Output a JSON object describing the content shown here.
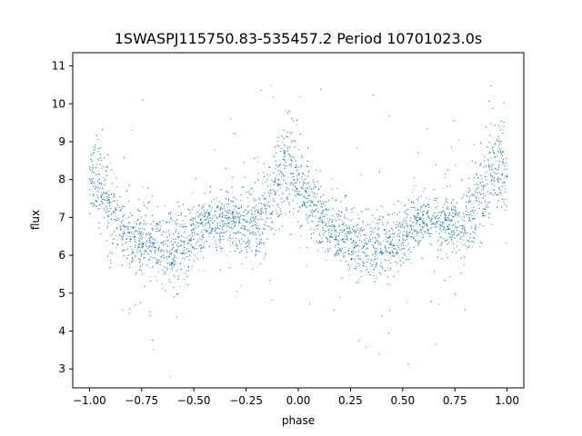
{
  "chart_data": {
    "type": "scatter",
    "title": "1SWASPJ115750.83-535457.2 Period 10701023.0s",
    "xlabel": "phase",
    "ylabel": "flux",
    "xlim": [
      -1.08,
      1.08
    ],
    "ylim": [
      2.5,
      11.35
    ],
    "xticks": [
      -1.0,
      -0.75,
      -0.5,
      -0.25,
      0.0,
      0.25,
      0.5,
      0.75,
      1.0
    ],
    "xtick_labels": [
      "−1.00",
      "−0.75",
      "−0.50",
      "−0.25",
      "0.00",
      "0.25",
      "0.50",
      "0.75",
      "1.00"
    ],
    "yticks": [
      3,
      4,
      5,
      6,
      7,
      8,
      9,
      10,
      11
    ],
    "ytick_labels": [
      "3",
      "4",
      "5",
      "6",
      "7",
      "8",
      "9",
      "10",
      "11"
    ],
    "grid": false,
    "point_color": "#1f77b4",
    "series": [
      {
        "phase": [
          -1.0,
          -0.95,
          -0.9,
          -0.85,
          -0.8,
          -0.75,
          -0.7,
          -0.65,
          -0.6,
          -0.55,
          -0.5,
          -0.45,
          -0.4,
          -0.35,
          -0.3,
          -0.25,
          -0.2,
          -0.15,
          -0.1,
          -0.05,
          0.0,
          0.05,
          0.1,
          0.15,
          0.2,
          0.25,
          0.3,
          0.35,
          0.4,
          0.45,
          0.5,
          0.55,
          0.6,
          0.65,
          0.7,
          0.75,
          0.8,
          0.85,
          0.9,
          0.95,
          1.0
        ],
        "flux_median": [
          8.0,
          7.9,
          7.1,
          6.7,
          6.5,
          6.4,
          6.3,
          6.2,
          6.2,
          6.3,
          6.6,
          6.8,
          6.9,
          6.9,
          6.8,
          6.8,
          6.9,
          7.2,
          7.9,
          8.4,
          8.0,
          7.4,
          7.0,
          6.7,
          6.5,
          6.4,
          6.3,
          6.2,
          6.2,
          6.3,
          6.6,
          6.8,
          6.9,
          6.9,
          6.8,
          6.8,
          6.9,
          7.2,
          7.9,
          8.4,
          8.0
        ],
        "flux_spread": [
          0.45,
          0.55,
          0.5,
          0.45,
          0.45,
          0.45,
          0.45,
          0.45,
          0.45,
          0.45,
          0.4,
          0.35,
          0.35,
          0.35,
          0.4,
          0.4,
          0.45,
          0.5,
          0.6,
          0.65,
          0.55,
          0.5,
          0.45,
          0.45,
          0.45,
          0.45,
          0.45,
          0.45,
          0.45,
          0.45,
          0.4,
          0.35,
          0.35,
          0.35,
          0.4,
          0.4,
          0.45,
          0.5,
          0.6,
          0.65,
          0.45
        ]
      }
    ]
  }
}
